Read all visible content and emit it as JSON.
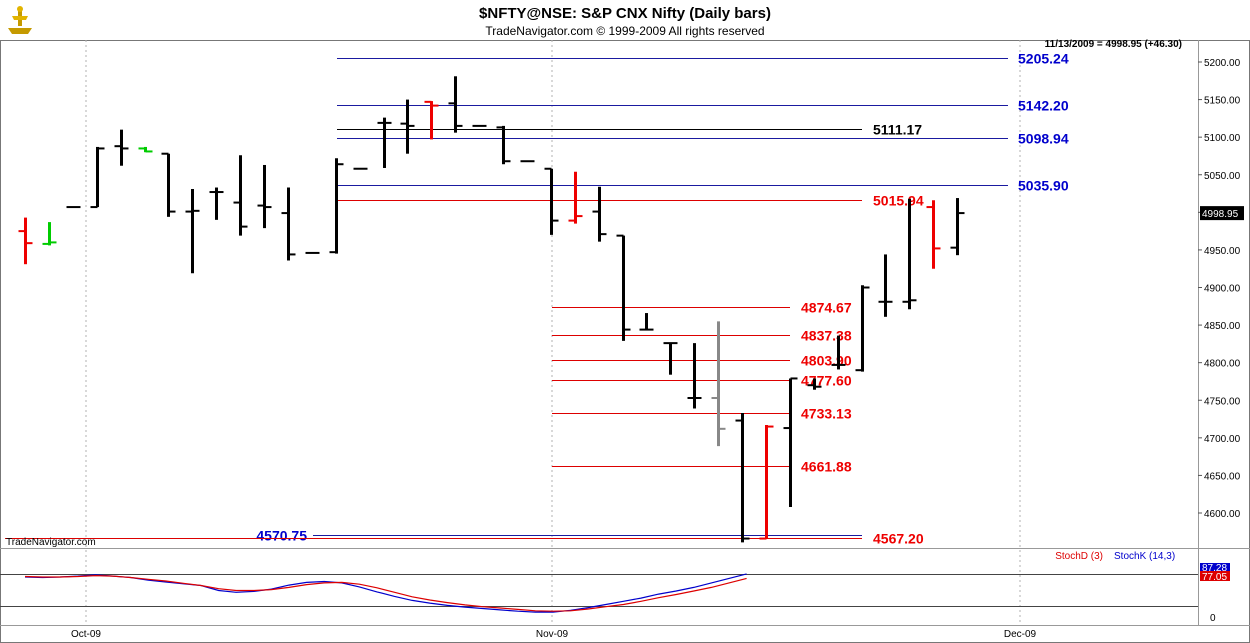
{
  "header": {
    "title": "$NFTY@NSE:  S&P CNX Nifty  (Daily bars)",
    "copyright": "TradeNavigator.com © 1999-2009 All rights reserved",
    "quote": "11/13/2009 = 4998.95 (+46.30)",
    "watermark": "TradeNavigator.com"
  },
  "chart_data": [
    {
      "type": "ohlc",
      "title": "$NFTY@NSE:  S&P CNX Nifty  (Daily bars)",
      "y_ticks": [
        "5200.00",
        "5150.00",
        "5100.00",
        "5050.00",
        "5000.00",
        "4950.00",
        "4900.00",
        "4850.00",
        "4800.00",
        "4750.00",
        "4700.00",
        "4650.00",
        "4600.00"
      ],
      "ylim": [
        4557,
        5245
      ],
      "last_price_label": "4998.95",
      "x_ticks": [
        "Oct-09",
        "Nov-09",
        "Dec-09"
      ],
      "bars": [
        {
          "o": 4975,
          "h": 4993,
          "l": 4931,
          "c": 4959,
          "color": "red"
        },
        {
          "o": 4958,
          "h": 4987,
          "l": 4956,
          "c": 4960,
          "color": "green"
        },
        {
          "o": 5007,
          "h": 5007,
          "l": 5007,
          "c": 5007,
          "color": "black"
        },
        {
          "o": 5007,
          "h": 5087,
          "l": 5007,
          "c": 5085,
          "color": "black"
        },
        {
          "o": 5088,
          "h": 5110,
          "l": 5062,
          "c": 5085,
          "color": "black"
        },
        {
          "o": 5085,
          "h": 5087,
          "l": 5080,
          "c": 5081,
          "color": "green"
        },
        {
          "o": 5078,
          "h": 5078,
          "l": 4994,
          "c": 5001,
          "color": "black"
        },
        {
          "o": 5001,
          "h": 5031,
          "l": 4919,
          "c": 5002,
          "color": "black"
        },
        {
          "o": 5027,
          "h": 5033,
          "l": 4990,
          "c": 5027,
          "color": "black"
        },
        {
          "o": 5013,
          "h": 5076,
          "l": 4969,
          "c": 4981,
          "color": "black"
        },
        {
          "o": 5009,
          "h": 5063,
          "l": 4979,
          "c": 5007,
          "color": "black"
        },
        {
          "o": 4999,
          "h": 5033,
          "l": 4936,
          "c": 4944,
          "color": "black"
        },
        {
          "o": 4946,
          "h": 4946,
          "l": 4946,
          "c": 4946,
          "color": "black"
        },
        {
          "o": 4947,
          "h": 5072,
          "l": 4945,
          "c": 5064,
          "color": "black"
        },
        {
          "o": 5058,
          "h": 5058,
          "l": 5058,
          "c": 5058,
          "color": "black"
        },
        {
          "o": 5119,
          "h": 5126,
          "l": 5059,
          "c": 5119,
          "color": "black"
        },
        {
          "o": 5118,
          "h": 5150,
          "l": 5078,
          "c": 5115,
          "color": "black"
        },
        {
          "o": 5147,
          "h": 5148,
          "l": 5097,
          "c": 5142,
          "color": "red"
        },
        {
          "o": 5145,
          "h": 5181,
          "l": 5106,
          "c": 5115,
          "color": "black"
        },
        {
          "o": 5115,
          "h": 5115,
          "l": 5115,
          "c": 5115,
          "color": "black"
        },
        {
          "o": 5113,
          "h": 5115,
          "l": 5064,
          "c": 5068,
          "color": "black"
        },
        {
          "o": 5068,
          "h": 5068,
          "l": 5068,
          "c": 5068,
          "color": "black"
        },
        {
          "o": 5058,
          "h": 5058,
          "l": 4970,
          "c": 4989,
          "color": "black"
        },
        {
          "o": 4989,
          "h": 5054,
          "l": 4985,
          "c": 4995,
          "color": "red"
        },
        {
          "o": 5001,
          "h": 5034,
          "l": 4961,
          "c": 4971,
          "color": "black"
        },
        {
          "o": 4969,
          "h": 4969,
          "l": 4829,
          "c": 4844,
          "color": "black"
        },
        {
          "o": 4844,
          "h": 4866,
          "l": 4844,
          "c": 4844,
          "color": "black"
        },
        {
          "o": 4826,
          "h": 4826,
          "l": 4784,
          "c": 4826,
          "color": "black"
        },
        {
          "o": 4753,
          "h": 4826,
          "l": 4739,
          "c": 4753,
          "color": "black"
        },
        {
          "o": 4753,
          "h": 4855,
          "l": 4689,
          "c": 4712,
          "color": "gray"
        },
        {
          "o": 4723,
          "h": 4733,
          "l": 4561,
          "c": 4566,
          "color": "black"
        },
        {
          "o": 4566,
          "h": 4717,
          "l": 4566,
          "c": 4715,
          "color": "red"
        },
        {
          "o": 4713,
          "h": 4779,
          "l": 4608,
          "c": 4779,
          "color": "black"
        },
        {
          "o": 4770,
          "h": 4779,
          "l": 4764,
          "c": 4768,
          "color": "black"
        },
        {
          "o": 4797,
          "h": 4836,
          "l": 4791,
          "c": 4797,
          "color": "black"
        },
        {
          "o": 4790,
          "h": 4903,
          "l": 4788,
          "c": 4900,
          "color": "black"
        },
        {
          "o": 4881,
          "h": 4944,
          "l": 4861,
          "c": 4881,
          "color": "black"
        },
        {
          "o": 4881,
          "h": 5018,
          "l": 4871,
          "c": 4883,
          "color": "black"
        },
        {
          "o": 5007,
          "h": 5016,
          "l": 4925,
          "c": 4952,
          "color": "red"
        },
        {
          "o": 4953,
          "h": 5019,
          "l": 4943,
          "c": 4999,
          "color": "black"
        }
      ],
      "levels": [
        {
          "value": 5205.24,
          "label": "5205.24",
          "color": "#0000cc",
          "line": "#1a1aa0"
        },
        {
          "value": 5142.2,
          "label": "5142.20",
          "color": "#0000cc",
          "line": "#1a1aa0"
        },
        {
          "value": 5111.17,
          "label": "5111.17",
          "color": "#000000",
          "line": "#000000"
        },
        {
          "value": 5098.94,
          "label": "5098.94",
          "color": "#0000cc",
          "line": "#1a1aa0"
        },
        {
          "value": 5035.9,
          "label": "5035.90",
          "color": "#0000cc",
          "line": "#1a1aa0"
        },
        {
          "value": 5015.94,
          "label": "5015.94",
          "color": "#ee0000",
          "line": "#dd0000"
        },
        {
          "value": 4874.67,
          "label": "4874.67",
          "color": "#ee0000",
          "line": "#dd0000"
        },
        {
          "value": 4837.38,
          "label": "4837.38",
          "color": "#ee0000",
          "line": "#dd0000"
        },
        {
          "value": 4803.9,
          "label": "4803.90",
          "color": "#ee0000",
          "line": "#dd0000"
        },
        {
          "value": 4777.6,
          "label": "4777.60",
          "color": "#ee0000",
          "line": "#dd0000"
        },
        {
          "value": 4733.13,
          "label": "4733.13",
          "color": "#ee0000",
          "line": "#dd0000"
        },
        {
          "value": 4661.88,
          "label": "4661.88",
          "color": "#ee0000",
          "line": "#dd0000"
        },
        {
          "value": 4570.75,
          "label": "4570.75",
          "color": "#0000cc",
          "line": "#1a1aa0"
        },
        {
          "value": 4567.2,
          "label": "4567.20",
          "color": "#ee0000",
          "line": "#dd0000"
        }
      ]
    },
    {
      "type": "line",
      "ylim": [
        0,
        100
      ],
      "y_ticks": [
        "0"
      ],
      "value_labels": [
        "87.28",
        "77.05"
      ],
      "series": [
        {
          "name": "StochK (14,3)",
          "color": "#0000cc",
          "values": [
            80,
            79,
            80,
            82,
            85,
            82,
            79,
            73,
            69,
            65,
            61,
            50,
            46,
            48,
            53,
            62,
            68,
            70,
            67,
            58,
            47,
            37,
            28,
            22,
            17,
            13,
            10,
            7,
            4,
            2,
            2,
            6,
            12,
            19,
            26,
            33,
            42,
            49,
            57,
            67,
            77,
            87
          ]
        },
        {
          "name": "StochD (3)",
          "color": "#dd0000",
          "values": [
            81,
            80,
            80,
            81,
            83,
            82,
            79,
            75,
            71,
            66,
            61,
            54,
            50,
            50,
            52,
            57,
            63,
            67,
            68,
            64,
            56,
            46,
            36,
            29,
            23,
            18,
            14,
            11,
            8,
            5,
            4,
            5,
            9,
            14,
            19,
            26,
            34,
            41,
            49,
            57,
            67,
            77
          ]
        }
      ]
    }
  ]
}
